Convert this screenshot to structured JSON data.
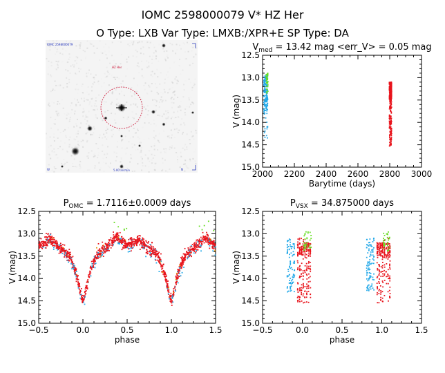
{
  "header": {
    "line1": "IOMC 2598000079    V* HZ Her",
    "line2": "O Type: LXB   Var Type: LMXB:/XPR+E   SP Type: DA"
  },
  "image_panel": {
    "corner_tl": "IOMC 2598000079",
    "label_center": "HZ Her",
    "label_bottom": "5.00 arcmin",
    "corner_bl": "W",
    "corner_br": "N"
  },
  "colors": {
    "red": "#e8141c",
    "blue": "#22a8e8",
    "green": "#66dd22",
    "orange": "#e89a10",
    "overlay": "#cc1133",
    "label_blue": "#2233bb"
  },
  "chart_data": [
    {
      "id": "lightcurve",
      "type": "scatter",
      "title": "V_med = 13.42 mag <err_V> = 0.05 mag",
      "title_parts": {
        "base": "V",
        "sub": "med",
        "rest": " = 13.42 mag <err_V> = 0.05 mag"
      },
      "xlabel": "Barytime (days)",
      "ylabel": "V (mag)",
      "xlim": [
        2000,
        3000
      ],
      "ylim": [
        15.0,
        12.5
      ],
      "xticks": [
        2000,
        2200,
        2400,
        2600,
        2800,
        3000
      ],
      "yticks": [
        12.5,
        13.0,
        13.5,
        14.0,
        14.5,
        15.0
      ],
      "series": [
        {
          "color_key": "blue",
          "x_range": [
            2008,
            2032
          ],
          "y_range": [
            12.95,
            14.4
          ],
          "count": 160
        },
        {
          "color_key": "green",
          "x_range": [
            2022,
            2034
          ],
          "y_range": [
            12.9,
            13.35
          ],
          "count": 40
        },
        {
          "color_key": "red",
          "x_range": [
            2798,
            2812
          ],
          "y_range": [
            13.1,
            14.55
          ],
          "count": 360
        }
      ]
    },
    {
      "id": "phase_omc",
      "type": "scatter",
      "title": "P_OMC = 1.7116±0.0009 days",
      "title_parts": {
        "base": "P",
        "sub": "OMC",
        "rest": " = 1.7116±0.0009 days"
      },
      "xlabel": "phase",
      "ylabel": "V (mag)",
      "xlim": [
        -0.5,
        1.5
      ],
      "ylim": [
        15.0,
        12.5
      ],
      "xticks": [
        -0.5,
        0.0,
        0.5,
        1.0,
        1.5
      ],
      "yticks": [
        12.5,
        13.0,
        13.5,
        14.0,
        14.5,
        15.0
      ],
      "model": {
        "base": 13.3,
        "depth": 1.2,
        "width": 0.1,
        "hump": 0.2,
        "hump_center": 0.38
      }
    },
    {
      "id": "phase_vsx",
      "type": "scatter",
      "title": "P_VSX = 34.875000 days",
      "title_parts": {
        "base": "P",
        "sub": "VSX",
        "rest": " = 34.875000 days"
      },
      "xlabel": "phase",
      "ylabel": "V (mag)",
      "xlim": [
        -0.5,
        1.5
      ],
      "ylim": [
        15.0,
        12.5
      ],
      "xticks": [
        -0.5,
        0.0,
        0.5,
        1.0,
        1.5
      ],
      "yticks": [
        12.5,
        13.0,
        13.5,
        14.0,
        14.5,
        15.0
      ],
      "clusters": [
        {
          "color_key": "blue",
          "x_range": [
            -0.19,
            -0.09
          ],
          "y_range": [
            13.1,
            14.3
          ],
          "count": 90
        },
        {
          "color_key": "red",
          "x_range": [
            -0.06,
            0.12
          ],
          "y_range": [
            13.1,
            14.55
          ],
          "count": 260
        },
        {
          "color_key": "green",
          "x_range": [
            0.02,
            0.12
          ],
          "y_range": [
            12.95,
            13.4
          ],
          "count": 30
        }
      ]
    }
  ]
}
